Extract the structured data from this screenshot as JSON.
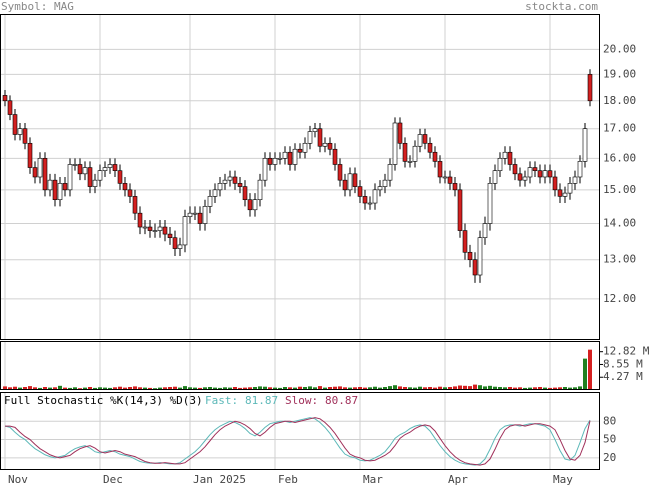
{
  "header": {
    "symbol": "Symbol: MAG",
    "source": "stockta.com"
  },
  "chart_data": [
    {
      "type": "candlestick",
      "log": true,
      "grid": true,
      "up_color": "#ffffff",
      "down_color": "#d42020",
      "categories": [
        "Nov",
        null,
        null,
        null,
        null,
        null,
        null,
        null,
        null,
        null,
        null,
        null,
        null,
        null,
        null,
        null,
        null,
        null,
        null,
        "Dec",
        null,
        null,
        null,
        null,
        null,
        null,
        null,
        null,
        null,
        null,
        null,
        null,
        null,
        null,
        null,
        null,
        null,
        "Jan 2025",
        null,
        null,
        null,
        null,
        null,
        null,
        null,
        null,
        null,
        null,
        null,
        null,
        null,
        null,
        null,
        null,
        "Feb",
        null,
        null,
        null,
        null,
        null,
        null,
        null,
        null,
        null,
        null,
        null,
        null,
        null,
        null,
        null,
        null,
        "Mar",
        null,
        null,
        null,
        null,
        null,
        null,
        null,
        null,
        null,
        null,
        null,
        null,
        null,
        null,
        null,
        null,
        "Apr",
        null,
        null,
        null,
        null,
        null,
        null,
        null,
        null,
        null,
        null,
        null,
        null,
        null,
        null,
        null,
        null,
        null,
        null,
        null,
        null,
        "May",
        null,
        null,
        null,
        null,
        null,
        null,
        null,
        null
      ],
      "open": [
        18.2,
        18.0,
        17.5,
        16.8,
        17.0,
        16.5,
        15.7,
        15.4,
        16.0,
        15.0,
        15.3,
        14.7,
        15.2,
        15.0,
        15.8,
        15.8,
        15.5,
        15.7,
        15.1,
        15.3,
        15.6,
        15.7,
        15.8,
        15.6,
        15.2,
        15.0,
        14.8,
        14.3,
        13.9,
        13.9,
        13.8,
        13.8,
        13.9,
        13.7,
        13.6,
        13.3,
        13.4,
        14.2,
        14.3,
        14.3,
        14.0,
        14.5,
        14.8,
        15.0,
        15.2,
        15.3,
        15.4,
        15.2,
        15.1,
        14.7,
        14.4,
        14.7,
        15.3,
        16.0,
        15.8,
        16.0,
        16.0,
        16.2,
        15.8,
        16.3,
        16.2,
        16.5,
        16.9,
        17.0,
        16.4,
        16.5,
        16.3,
        15.8,
        15.3,
        15.0,
        15.5,
        15.1,
        14.8,
        14.6,
        14.6,
        15.0,
        15.1,
        15.3,
        15.8,
        17.2,
        16.5,
        15.9,
        15.9,
        16.4,
        16.8,
        16.5,
        16.2,
        15.9,
        15.4,
        15.4,
        15.2,
        15.0,
        13.8,
        13.2,
        13.0,
        12.6,
        13.6,
        14.0,
        15.2,
        15.6,
        16.0,
        16.2,
        15.8,
        15.5,
        15.3,
        15.4,
        15.7,
        15.6,
        15.4,
        15.6,
        15.4,
        15.0,
        14.8,
        14.9,
        15.2,
        15.4,
        15.9,
        19.0
      ],
      "high": [
        18.4,
        18.2,
        17.7,
        17.2,
        17.2,
        16.7,
        15.9,
        16.2,
        16.2,
        15.5,
        15.5,
        15.4,
        15.4,
        16.0,
        16.0,
        16.0,
        15.9,
        15.9,
        15.5,
        15.8,
        15.9,
        16.0,
        16.0,
        15.8,
        15.4,
        15.2,
        15.0,
        14.5,
        14.1,
        14.1,
        14.0,
        14.1,
        14.1,
        13.9,
        13.8,
        13.6,
        14.4,
        14.5,
        14.5,
        14.5,
        14.7,
        15.0,
        15.2,
        15.4,
        15.5,
        15.6,
        15.6,
        15.4,
        15.3,
        14.9,
        14.9,
        15.5,
        16.2,
        16.2,
        16.2,
        16.2,
        16.4,
        16.4,
        16.5,
        16.5,
        16.7,
        17.1,
        17.2,
        17.2,
        16.7,
        16.7,
        16.5,
        16.0,
        15.5,
        15.7,
        15.7,
        15.3,
        15.0,
        14.8,
        15.2,
        15.3,
        15.5,
        16.0,
        17.4,
        17.4,
        16.7,
        16.1,
        16.6,
        17.0,
        17.0,
        16.7,
        16.4,
        16.1,
        15.6,
        15.6,
        15.4,
        15.2,
        14.0,
        13.4,
        13.2,
        13.8,
        14.2,
        15.4,
        15.8,
        16.2,
        16.4,
        16.4,
        16.0,
        15.7,
        15.6,
        15.9,
        15.9,
        15.8,
        15.8,
        15.8,
        15.6,
        15.2,
        15.1,
        15.4,
        15.6,
        16.1,
        17.2,
        19.2
      ],
      "low": [
        17.8,
        17.3,
        16.6,
        16.6,
        16.3,
        15.5,
        15.2,
        15.2,
        14.8,
        14.8,
        14.5,
        14.5,
        14.8,
        14.8,
        15.6,
        15.3,
        15.3,
        14.9,
        14.9,
        15.1,
        15.4,
        15.5,
        15.4,
        15.0,
        14.8,
        14.6,
        14.1,
        13.7,
        13.7,
        13.6,
        13.6,
        13.6,
        13.5,
        13.4,
        13.1,
        13.1,
        13.2,
        14.0,
        14.1,
        13.8,
        13.8,
        14.3,
        14.6,
        14.8,
        15.0,
        15.1,
        15.0,
        14.9,
        14.5,
        14.2,
        14.2,
        14.5,
        15.1,
        15.6,
        15.6,
        15.8,
        15.8,
        15.6,
        15.6,
        16.0,
        16.0,
        16.3,
        16.7,
        16.2,
        16.2,
        16.1,
        15.6,
        15.1,
        14.8,
        14.8,
        14.9,
        14.6,
        14.4,
        14.4,
        14.4,
        14.8,
        14.9,
        15.1,
        15.6,
        16.3,
        15.7,
        15.7,
        15.7,
        16.2,
        16.3,
        16.0,
        15.7,
        15.2,
        15.2,
        15.0,
        14.8,
        13.6,
        13.0,
        12.8,
        12.4,
        12.4,
        13.4,
        13.8,
        15.0,
        15.4,
        15.8,
        15.6,
        15.3,
        15.1,
        15.1,
        15.2,
        15.4,
        15.2,
        15.2,
        15.2,
        14.8,
        14.6,
        14.6,
        14.7,
        15.0,
        15.2,
        15.7,
        17.8
      ],
      "close": [
        18.0,
        17.5,
        16.8,
        17.0,
        16.5,
        15.7,
        15.4,
        16.0,
        15.0,
        15.3,
        14.7,
        15.2,
        15.0,
        15.8,
        15.8,
        15.5,
        15.7,
        15.1,
        15.3,
        15.6,
        15.7,
        15.8,
        15.6,
        15.2,
        15.0,
        14.8,
        14.3,
        13.9,
        13.9,
        13.8,
        13.8,
        13.9,
        13.7,
        13.6,
        13.3,
        13.4,
        14.2,
        14.3,
        14.3,
        14.0,
        14.5,
        14.8,
        15.0,
        15.2,
        15.3,
        15.4,
        15.2,
        15.1,
        14.7,
        14.4,
        14.7,
        15.3,
        16.0,
        15.8,
        16.0,
        16.0,
        16.2,
        15.8,
        16.3,
        16.2,
        16.5,
        16.9,
        17.0,
        16.4,
        16.5,
        16.3,
        15.8,
        15.3,
        15.0,
        15.5,
        15.1,
        14.8,
        14.6,
        14.6,
        15.0,
        15.1,
        15.3,
        15.8,
        17.2,
        16.5,
        15.9,
        15.9,
        16.4,
        16.8,
        16.5,
        16.2,
        15.9,
        15.4,
        15.4,
        15.2,
        15.0,
        13.8,
        13.2,
        13.0,
        12.6,
        13.6,
        14.0,
        15.2,
        15.6,
        16.0,
        16.2,
        15.8,
        15.5,
        15.3,
        15.4,
        15.7,
        15.6,
        15.4,
        15.6,
        15.4,
        15.0,
        14.8,
        14.9,
        15.2,
        15.4,
        15.9,
        17.0,
        18.0
      ],
      "ylim": [
        11.03,
        21.5
      ],
      "yticks": [
        {
          "value": 12,
          "label": "12.00"
        },
        {
          "value": 13,
          "label": "13.00"
        },
        {
          "value": 14,
          "label": "14.00"
        },
        {
          "value": 15,
          "label": "15.00"
        },
        {
          "value": 16,
          "label": "16.00"
        },
        {
          "value": 17,
          "label": "17.00"
        },
        {
          "value": 18,
          "label": "18.00"
        },
        {
          "value": 19,
          "label": "19.00"
        },
        {
          "value": 20,
          "label": "20.00"
        }
      ]
    },
    {
      "type": "bar",
      "up_color": "#208020",
      "down_color": "#d42020",
      "values": [
        1.2,
        0.9,
        1.1,
        0.8,
        1.0,
        1.3,
        0.9,
        0.7,
        1.0,
        0.8,
        0.9,
        1.4,
        0.8,
        0.7,
        0.9,
        0.6,
        0.8,
        1.0,
        0.7,
        0.9,
        0.8,
        0.7,
        0.9,
        1.1,
        0.8,
        1.0,
        1.2,
        0.9,
        0.8,
        0.7,
        0.6,
        0.8,
        0.9,
        1.0,
        1.1,
        0.8,
        1.3,
        0.9,
        0.8,
        0.7,
        0.9,
        1.0,
        0.8,
        0.7,
        0.9,
        0.8,
        1.0,
        0.7,
        0.8,
        0.9,
        1.0,
        1.2,
        1.1,
        0.9,
        0.8,
        0.7,
        1.0,
        0.9,
        0.8,
        1.1,
        1.0,
        1.2,
        0.9,
        1.3,
        0.8,
        1.0,
        1.1,
        1.2,
        0.9,
        0.8,
        0.9,
        1.0,
        0.8,
        0.9,
        1.1,
        0.8,
        1.0,
        1.3,
        1.6,
        1.2,
        1.0,
        0.9,
        0.8,
        1.1,
        0.9,
        1.0,
        0.8,
        1.1,
        0.9,
        1.0,
        1.2,
        1.5,
        1.4,
        1.3,
        1.8,
        1.6,
        1.2,
        1.4,
        1.1,
        1.0,
        0.9,
        1.0,
        0.8,
        0.9,
        0.7,
        0.8,
        0.9,
        1.0,
        0.8,
        0.7,
        0.8,
        0.9,
        1.0,
        0.8,
        0.9,
        1.2,
        10.5,
        13.5
      ],
      "ylim": [
        0,
        16.4
      ],
      "yticks": [
        {
          "value": 4.27,
          "label": "4.27 M"
        },
        {
          "value": 8.55,
          "label": "8.55 M"
        },
        {
          "value": 12.82,
          "label": "12.82 M"
        }
      ]
    },
    {
      "type": "line",
      "title": "Full Stochastic %K(14,3) %D(3)",
      "series": [
        {
          "name": "Fast:",
          "color": "#5cb8b8",
          "values": [
            72,
            70,
            62,
            55,
            50,
            42,
            35,
            30,
            25,
            22,
            20,
            22,
            24,
            30,
            35,
            38,
            40,
            36,
            30,
            28,
            30,
            32,
            30,
            26,
            24,
            22,
            18,
            14,
            12,
            11,
            11,
            12,
            11,
            10,
            10,
            12,
            18,
            24,
            30,
            38,
            48,
            58,
            66,
            72,
            76,
            80,
            78,
            74,
            68,
            60,
            56,
            62,
            70,
            76,
            78,
            80,
            80,
            78,
            80,
            82,
            84,
            86,
            84,
            78,
            70,
            60,
            48,
            36,
            26,
            22,
            20,
            16,
            15,
            16,
            20,
            24,
            30,
            40,
            52,
            58,
            62,
            68,
            72,
            74,
            72,
            64,
            52,
            40,
            30,
            22,
            16,
            12,
            10,
            9,
            8,
            10,
            18,
            34,
            52,
            66,
            72,
            74,
            74,
            72,
            74,
            76,
            76,
            74,
            72,
            66,
            50,
            32,
            18,
            16,
            24,
            45,
            68,
            81.87
          ]
        },
        {
          "name": "Slow:",
          "color": "#a0305a",
          "values": [
            72,
            72,
            70,
            62,
            55,
            50,
            42,
            35,
            30,
            25,
            22,
            20,
            22,
            24,
            30,
            35,
            38,
            40,
            36,
            30,
            28,
            30,
            32,
            30,
            26,
            24,
            22,
            18,
            14,
            12,
            11,
            11,
            12,
            11,
            10,
            10,
            12,
            18,
            24,
            30,
            38,
            48,
            58,
            66,
            72,
            76,
            80,
            78,
            74,
            68,
            60,
            56,
            62,
            70,
            76,
            78,
            80,
            80,
            78,
            80,
            82,
            84,
            86,
            84,
            78,
            70,
            60,
            48,
            36,
            26,
            22,
            20,
            16,
            15,
            16,
            20,
            24,
            30,
            40,
            52,
            58,
            62,
            68,
            72,
            74,
            72,
            64,
            52,
            40,
            30,
            22,
            16,
            12,
            10,
            9,
            8,
            10,
            18,
            34,
            52,
            66,
            72,
            74,
            74,
            72,
            74,
            76,
            76,
            74,
            72,
            66,
            50,
            32,
            18,
            16,
            24,
            45,
            80.87
          ]
        }
      ],
      "ylim": [
        0,
        128
      ],
      "yticks": [
        20,
        50,
        80
      ]
    }
  ]
}
